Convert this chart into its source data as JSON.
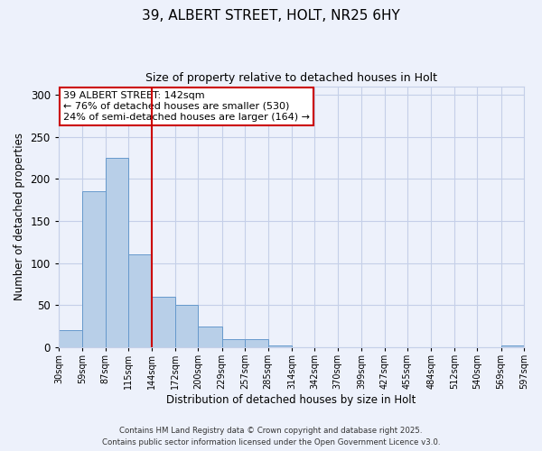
{
  "title": "39, ALBERT STREET, HOLT, NR25 6HY",
  "subtitle": "Size of property relative to detached houses in Holt",
  "xlabel": "Distribution of detached houses by size in Holt",
  "ylabel": "Number of detached properties",
  "bin_labels": [
    "30sqm",
    "59sqm",
    "87sqm",
    "115sqm",
    "144sqm",
    "172sqm",
    "200sqm",
    "229sqm",
    "257sqm",
    "285sqm",
    "314sqm",
    "342sqm",
    "370sqm",
    "399sqm",
    "427sqm",
    "455sqm",
    "484sqm",
    "512sqm",
    "540sqm",
    "569sqm",
    "597sqm"
  ],
  "bin_edges": [
    30,
    59,
    87,
    115,
    144,
    172,
    200,
    229,
    257,
    285,
    314,
    342,
    370,
    399,
    427,
    455,
    484,
    512,
    540,
    569,
    597
  ],
  "bar_heights": [
    20,
    185,
    225,
    110,
    60,
    50,
    25,
    10,
    10,
    2,
    0,
    0,
    0,
    0,
    0,
    0,
    0,
    0,
    0,
    2
  ],
  "bar_color": "#b8cfe8",
  "bar_edge_color": "#6699cc",
  "vline_x": 144,
  "vline_color": "#cc0000",
  "ylim": [
    0,
    310
  ],
  "yticks": [
    0,
    50,
    100,
    150,
    200,
    250,
    300
  ],
  "annotation_title": "39 ALBERT STREET: 142sqm",
  "annotation_line1": "← 76% of detached houses are smaller (530)",
  "annotation_line2": "24% of semi-detached houses are larger (164) →",
  "annotation_box_color": "#ffffff",
  "annotation_box_edge": "#cc0000",
  "footer1": "Contains HM Land Registry data © Crown copyright and database right 2025.",
  "footer2": "Contains public sector information licensed under the Open Government Licence v3.0.",
  "background_color": "#edf1fb",
  "grid_color": "#c5cfe8"
}
